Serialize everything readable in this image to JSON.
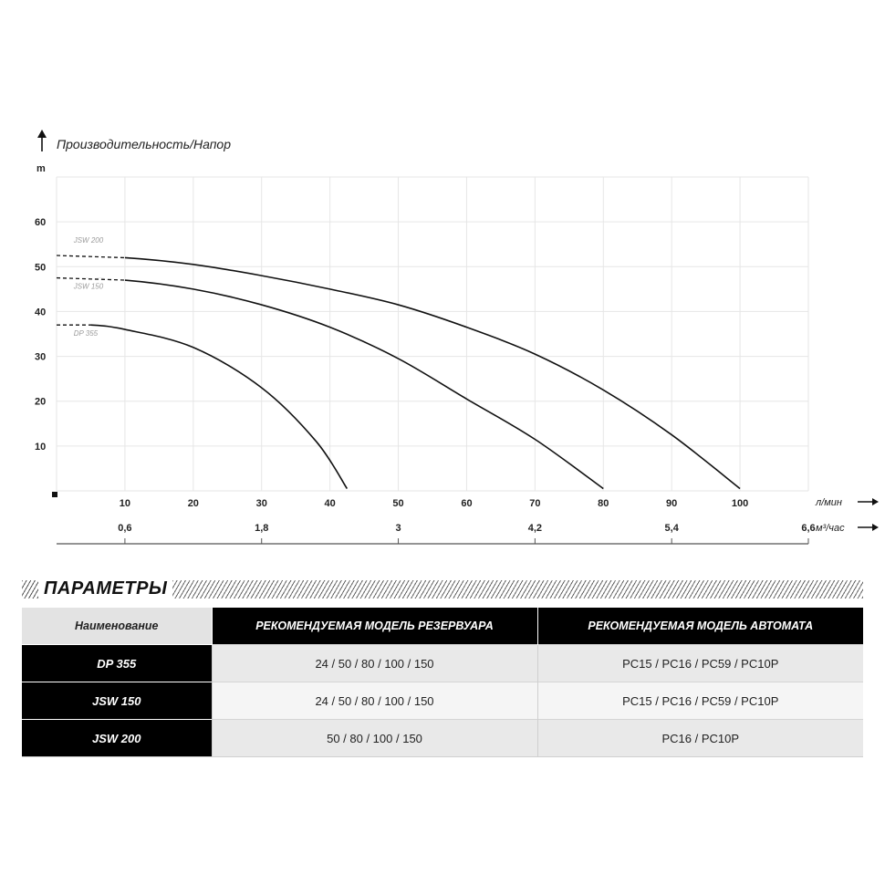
{
  "chart_data": {
    "type": "line",
    "title": "Производительность/Напор",
    "ylabel": "m",
    "xlabel": "л/мин",
    "x2label": "м³/час",
    "ylim": [
      0,
      70
    ],
    "xlim": [
      0,
      110
    ],
    "y_ticks": [
      "10",
      "20",
      "30",
      "40",
      "50",
      "60"
    ],
    "x_ticks": [
      "10",
      "20",
      "30",
      "40",
      "50",
      "60",
      "70",
      "80",
      "90",
      "100"
    ],
    "x2_ticks": [
      "0,6",
      "1,8",
      "3",
      "4,2",
      "5,4",
      "6,6"
    ],
    "grid": true,
    "series": [
      {
        "name": "JSW 200",
        "x": [
          0,
          10,
          20,
          30,
          40,
          50,
          60,
          70,
          80,
          90,
          100
        ],
        "y": [
          52.5,
          52.0,
          50.5,
          48.0,
          45.0,
          41.5,
          36.5,
          30.5,
          22.5,
          12.5,
          0.5
        ]
      },
      {
        "name": "JSW 150",
        "x": [
          0,
          10,
          20,
          30,
          40,
          50,
          60,
          70,
          80
        ],
        "y": [
          47.5,
          47.0,
          45.0,
          41.5,
          36.5,
          29.5,
          20.5,
          11.5,
          0.5
        ]
      },
      {
        "name": "DP 355",
        "x": [
          0,
          5,
          10,
          20,
          30,
          38,
          42.5
        ],
        "y": [
          37.0,
          37.0,
          36.0,
          32.0,
          23.0,
          11.0,
          0.5
        ]
      }
    ]
  },
  "params": {
    "title": "ПАРАМЕТРЫ",
    "headers": [
      "Наименование",
      "РЕКОМЕНДУЕМАЯ МОДЕЛЬ РЕЗЕРВУАРА",
      "РЕКОМЕНДУЕМАЯ МОДЕЛЬ АВТОМАТА"
    ],
    "rows": [
      {
        "name": "DP 355",
        "tank": "24  / 50  / 80  / 100  / 150",
        "automat": "PC15 / PC16 / PC59 / PC10P"
      },
      {
        "name": "JSW 150",
        "tank": "24  / 50  / 80  / 100  / 150",
        "automat": "PC15 / PC16 / PC59 / PC10P"
      },
      {
        "name": "JSW 200",
        "tank": "50  / 80  / 100  / 150",
        "automat": "PC16 / PC10P"
      }
    ]
  }
}
